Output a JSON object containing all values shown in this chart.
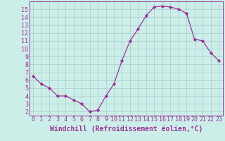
{
  "x": [
    0,
    1,
    2,
    3,
    4,
    5,
    6,
    7,
    8,
    9,
    10,
    11,
    12,
    13,
    14,
    15,
    16,
    17,
    18,
    19,
    20,
    21,
    22,
    23
  ],
  "y": [
    6.5,
    5.5,
    5.0,
    4.0,
    4.0,
    3.5,
    3.0,
    2.0,
    2.2,
    4.0,
    5.5,
    8.5,
    11.0,
    12.5,
    14.2,
    15.3,
    15.4,
    15.3,
    15.0,
    14.5,
    11.2,
    11.0,
    9.5,
    8.5
  ],
  "line_color": "#993399",
  "marker": "D",
  "marker_size": 2.2,
  "xlabel": "Windchill (Refroidissement éolien,°C)",
  "xlim": [
    -0.5,
    23.5
  ],
  "ylim": [
    1.5,
    16.0
  ],
  "yticks": [
    2,
    3,
    4,
    5,
    6,
    7,
    8,
    9,
    10,
    11,
    12,
    13,
    14,
    15
  ],
  "xticks": [
    0,
    1,
    2,
    3,
    4,
    5,
    6,
    7,
    8,
    9,
    10,
    11,
    12,
    13,
    14,
    15,
    16,
    17,
    18,
    19,
    20,
    21,
    22,
    23
  ],
  "bg_color": "#cceee8",
  "grid_color": "#aacccc",
  "font_color": "#993399",
  "tick_fontsize": 6.0,
  "xlabel_fontsize": 7.0,
  "linewidth": 0.9
}
